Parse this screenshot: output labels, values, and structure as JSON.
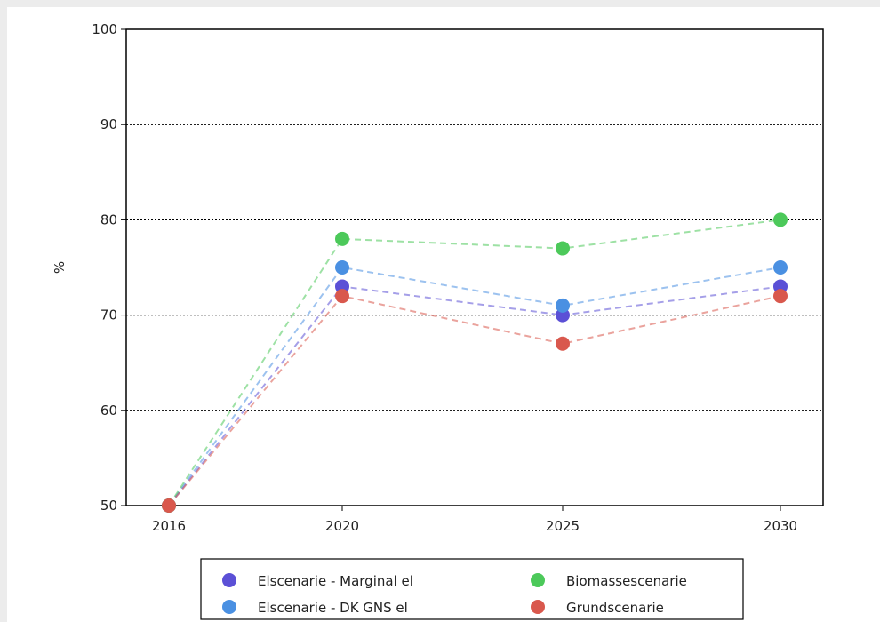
{
  "chart_data": {
    "type": "line",
    "title": "",
    "xlabel": "",
    "ylabel": "%",
    "x": [
      "2016",
      "2020",
      "2025",
      "2030"
    ],
    "ylim": [
      50,
      100
    ],
    "yticks": [
      50,
      60,
      70,
      80,
      90,
      100
    ],
    "grid": "horizontal dotted",
    "legend_position": "bottom, below plot",
    "series": [
      {
        "name": "Elscenarie - Marginal el",
        "color": "#5b50d6",
        "values": [
          50,
          73,
          70,
          73
        ]
      },
      {
        "name": "Elscenarie - DK GNS el",
        "color": "#4a90e2",
        "values": [
          50,
          75,
          71,
          75
        ]
      },
      {
        "name": "Biomassescenarie",
        "color": "#4cc95a",
        "values": [
          50,
          78,
          77,
          80
        ]
      },
      {
        "name": "Grundscenarie",
        "color": "#d9584d",
        "values": [
          50,
          72,
          67,
          72
        ]
      }
    ]
  }
}
